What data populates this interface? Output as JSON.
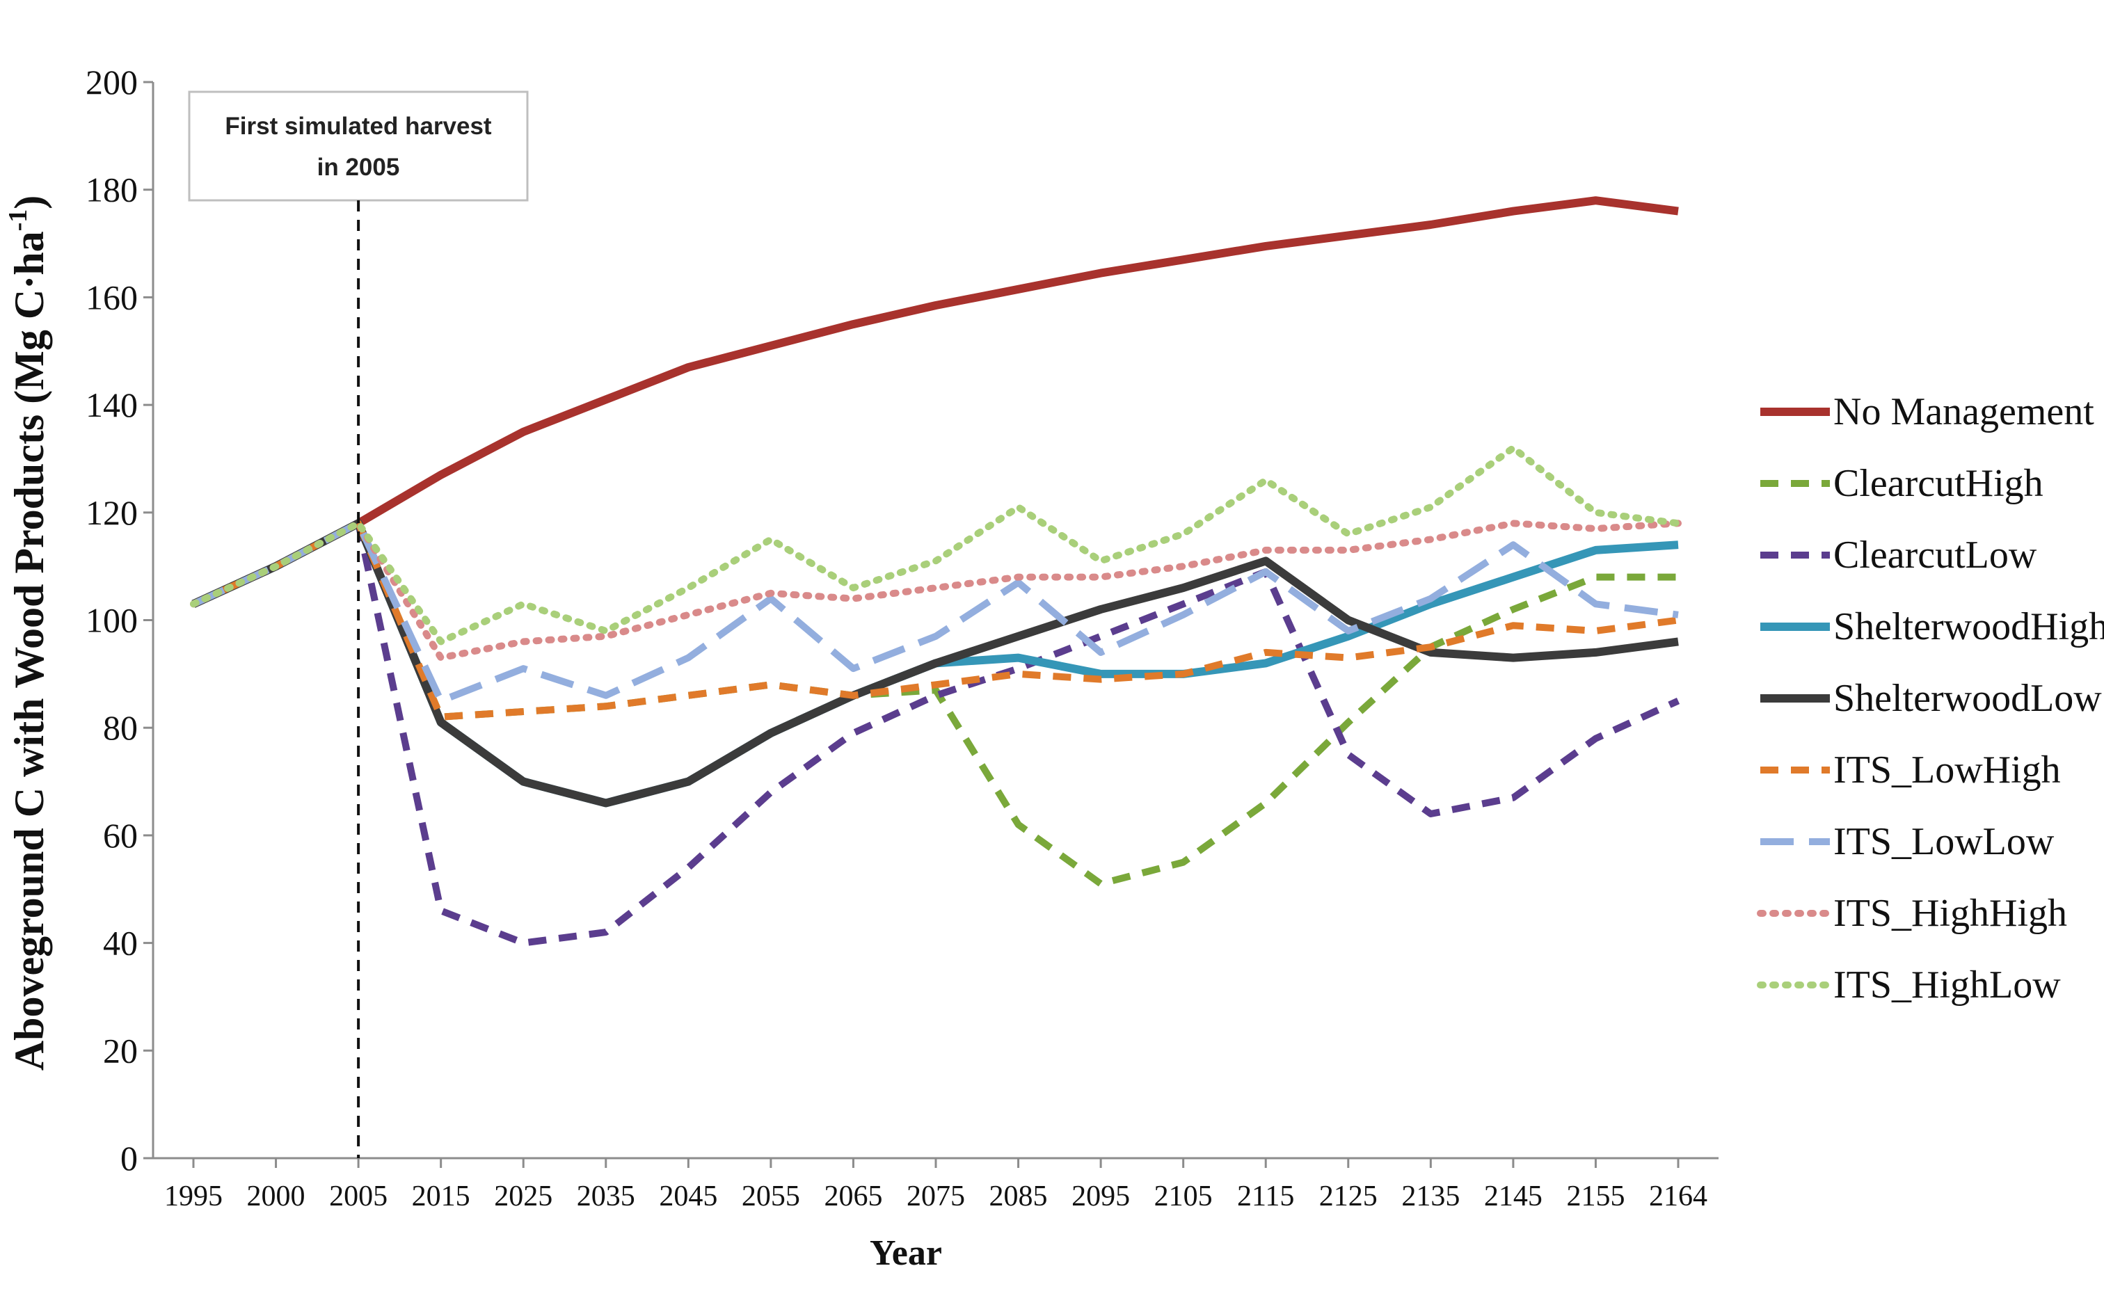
{
  "chart_data": {
    "type": "line",
    "title": "",
    "xlabel": "Year",
    "ylabel": "Aboveground C with Wood Products (Mg C·ha",
    "ylabel_sup": "-1",
    "ylabel_end": ")",
    "ylim": [
      0,
      200
    ],
    "yticks": [
      "0",
      "20",
      "40",
      "60",
      "80",
      "100",
      "120",
      "140",
      "160",
      "180",
      "200"
    ],
    "x": [
      "1995",
      "2000",
      "2005",
      "2015",
      "2025",
      "2035",
      "2045",
      "2055",
      "2065",
      "2075",
      "2085",
      "2095",
      "2105",
      "2115",
      "2125",
      "2135",
      "2145",
      "2155",
      "2164"
    ],
    "grid": false,
    "legend_position": "right",
    "annotation": {
      "line1": "First simulated harvest",
      "line2": "in 2005",
      "at": "2005"
    },
    "series": [
      {
        "name": "No Management",
        "color": "#a8322d",
        "style": "solid",
        "values": [
          103,
          110,
          118,
          127,
          135,
          141,
          147,
          151,
          155,
          158.5,
          161.5,
          164.5,
          167,
          169.5,
          171.5,
          173.5,
          176,
          178,
          176
        ]
      },
      {
        "name": "ClearcutHigh",
        "color": "#7aa83a",
        "style": "dashed",
        "values": [
          103,
          110,
          118,
          82,
          83,
          84,
          86,
          88,
          86,
          87,
          62,
          51,
          55,
          66,
          81,
          95,
          102,
          108,
          108
        ]
      },
      {
        "name": "ClearcutLow",
        "color": "#5b3d8e",
        "style": "dashed",
        "values": [
          103,
          110,
          118,
          46,
          40,
          42,
          54,
          68,
          79,
          86,
          91,
          97,
          103,
          109,
          75,
          64,
          67,
          78,
          85
        ]
      },
      {
        "name": "ShelterwoodHigh",
        "color": "#3596b7",
        "style": "solid",
        "values": [
          103,
          110,
          118,
          81,
          70,
          66,
          70,
          79,
          86,
          92,
          93,
          90,
          90,
          92,
          97,
          103,
          108,
          113,
          114
        ]
      },
      {
        "name": "ShelterwoodLow",
        "color": "#3b3b3b",
        "style": "solid",
        "values": [
          103,
          110,
          118,
          81,
          70,
          66,
          70,
          79,
          86,
          92,
          97,
          102,
          106,
          111,
          100,
          94,
          93,
          94,
          96
        ]
      },
      {
        "name": "ITS_LowHigh",
        "color": "#e07a2a",
        "style": "dashed",
        "values": [
          103,
          110,
          118,
          82,
          83,
          84,
          86,
          88,
          86,
          88,
          90,
          89,
          90,
          94,
          93,
          95,
          99,
          98,
          100
        ]
      },
      {
        "name": "ITS_LowLow",
        "color": "#93aede",
        "style": "longdash",
        "values": [
          103,
          110,
          118,
          85,
          91,
          86,
          93,
          104,
          91,
          97,
          107,
          94,
          101,
          109,
          98,
          104,
          114,
          103,
          101
        ]
      },
      {
        "name": "ITS_HighHigh",
        "color": "#d98a8a",
        "style": "dotted",
        "values": [
          103,
          110,
          118,
          93,
          96,
          97,
          101,
          105,
          104,
          106,
          108,
          108,
          110,
          113,
          113,
          115,
          118,
          117,
          118
        ]
      },
      {
        "name": "ITS_HighLow",
        "color": "#a9cf7a",
        "style": "dotted",
        "values": [
          103,
          110,
          118,
          96,
          103,
          98,
          106,
          115,
          106,
          111,
          121,
          111,
          116,
          126,
          116,
          121,
          132,
          120,
          118
        ]
      }
    ]
  }
}
